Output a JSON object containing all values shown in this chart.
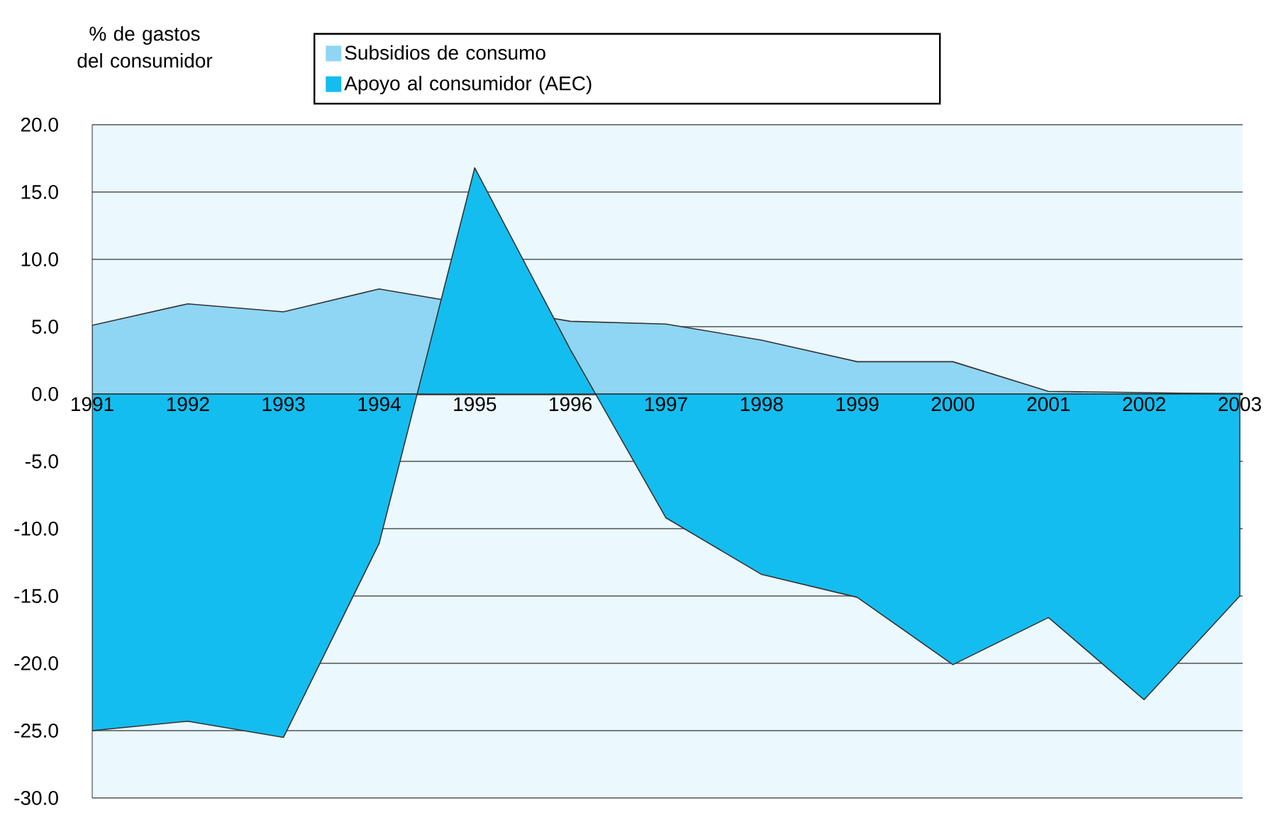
{
  "chart_data": {
    "type": "area",
    "ylabel": "% de gastos del consumidor",
    "categories": [
      "1991",
      "1992",
      "1993",
      "1994",
      "1995",
      "1996",
      "1997",
      "1998",
      "1999",
      "2000",
      "2001",
      "2002",
      "2003"
    ],
    "series": [
      {
        "name": "Subsidios de consumo",
        "color": "#8fd6f4",
        "values": [
          5.1,
          6.7,
          6.1,
          7.8,
          null,
          5.4,
          5.2,
          4.0,
          2.4,
          2.4,
          0.2,
          0.1,
          0.0
        ]
      },
      {
        "name": "Apoyo al consumidor (AEC)",
        "color": "#14bdef",
        "values": [
          -25.0,
          -24.3,
          -25.5,
          -11.1,
          16.8,
          3.3,
          -9.2,
          -13.4,
          -15.1,
          -20.1,
          -16.6,
          -22.7,
          -15.0
        ]
      }
    ],
    "ylim": [
      -30,
      20
    ],
    "yticks": [
      {
        "value": -30,
        "label": "-30.0"
      },
      {
        "value": -25,
        "label": "-25.0"
      },
      {
        "value": -20,
        "label": "-20.0"
      },
      {
        "value": -15,
        "label": "-15.0"
      },
      {
        "value": -10,
        "label": "-10.0"
      },
      {
        "value": -5,
        "label": "-5.0"
      },
      {
        "value": 0,
        "label": "0.0"
      },
      {
        "value": 5,
        "label": "5.0"
      },
      {
        "value": 10,
        "label": "10.0"
      },
      {
        "value": 15,
        "label": "15.0"
      },
      {
        "value": 20,
        "label": "20.0"
      }
    ],
    "grid": "y",
    "legend": "top"
  }
}
